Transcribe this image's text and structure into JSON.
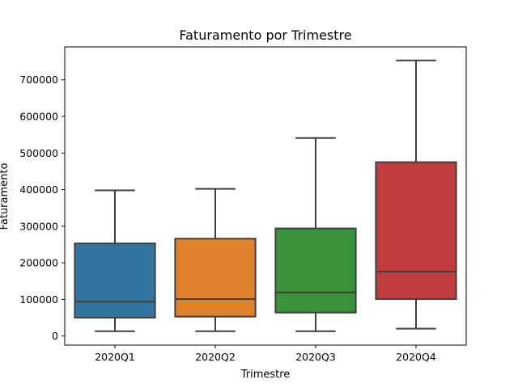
{
  "chart_data": {
    "type": "box",
    "title": "Faturamento por Trimestre",
    "xlabel": "Trimestre",
    "ylabel": "Faturamento",
    "ylim": [
      -25000,
      790000
    ],
    "yticks": [
      0,
      100000,
      200000,
      300000,
      400000,
      500000,
      600000,
      700000
    ],
    "grid": false,
    "categories": [
      "2020Q1",
      "2020Q2",
      "2020Q3",
      "2020Q4"
    ],
    "boxes": [
      {
        "category": "2020Q1",
        "whisker_low": 13000,
        "q1": 50000,
        "median": 94000,
        "q3": 253000,
        "whisker_high": 398000,
        "color": "#3274a1"
      },
      {
        "category": "2020Q2",
        "whisker_low": 13000,
        "q1": 53000,
        "median": 101000,
        "q3": 266000,
        "whisker_high": 402000,
        "color": "#e1812c"
      },
      {
        "category": "2020Q3",
        "whisker_low": 13000,
        "q1": 64000,
        "median": 119000,
        "q3": 294000,
        "whisker_high": 541000,
        "color": "#3a923a"
      },
      {
        "category": "2020Q4",
        "whisker_low": 20000,
        "q1": 101000,
        "median": 176000,
        "q3": 475000,
        "whisker_high": 753000,
        "color": "#c03d3e"
      }
    ]
  }
}
